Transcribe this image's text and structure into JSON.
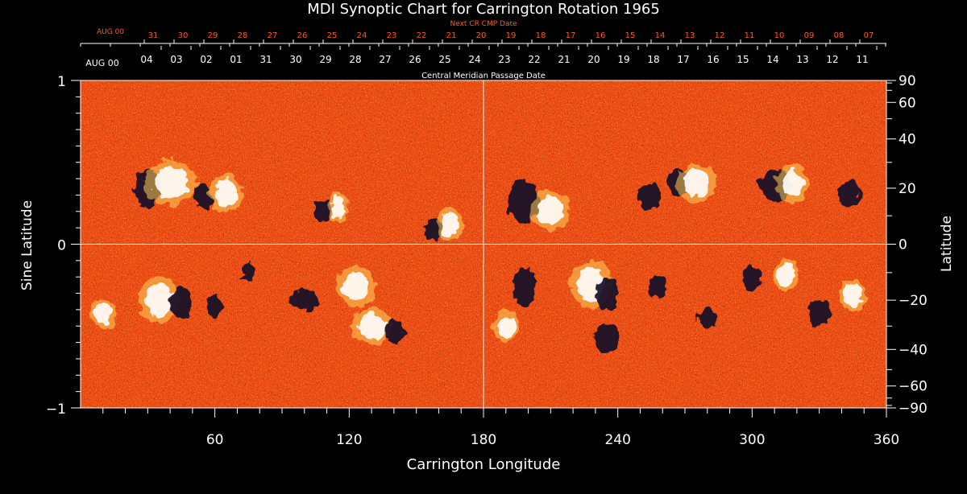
{
  "chart_data": {
    "type": "heatmap",
    "title": "MDI Synoptic Chart for Carrington Rotation 1965",
    "xlabel": "Carrington Longitude",
    "ylabel_left": "Sine Latitude",
    "ylabel_right": "Latitude",
    "xlim": [
      0,
      360
    ],
    "ylim": [
      -1,
      1
    ],
    "x_ticks": [
      60,
      120,
      180,
      240,
      300,
      360
    ],
    "y_ticks_left": [
      1,
      0,
      -1
    ],
    "y_ticks_left_labels": [
      "1",
      "0",
      "−1"
    ],
    "y_ticks_right": [
      90,
      60,
      40,
      20,
      0,
      -20,
      -40,
      -60,
      -90
    ],
    "y_ticks_right_labels": [
      "90",
      "60",
      "40",
      "20",
      "0",
      "−20",
      "−40",
      "−60",
      "−90"
    ],
    "top_axis": {
      "label": "Central Meridian Passage Date",
      "start_label": "AUG 00",
      "dates": [
        "04",
        "03",
        "02",
        "01",
        "31",
        "30",
        "29",
        "28",
        "27",
        "26",
        "25",
        "24",
        "23",
        "22",
        "21",
        "20",
        "19",
        "18",
        "17",
        "16",
        "15",
        "14",
        "13",
        "12",
        "11"
      ]
    },
    "next_axis": {
      "label": "Next CR CMP Date",
      "start_label": "AUG 00",
      "dates": [
        "31",
        "30",
        "29",
        "28",
        "27",
        "26",
        "25",
        "24",
        "23",
        "22",
        "21",
        "20",
        "19",
        "18",
        "17",
        "16",
        "15",
        "14",
        "13",
        "12",
        "11",
        "10",
        "09",
        "08",
        "07"
      ]
    },
    "colors": {
      "background": "#000000",
      "field_base": "#ec4a12",
      "positive_polarity": "#ffffff",
      "positive_mid": "#ffd25a",
      "negative_polarity": "#100828",
      "axis": "#ffffff",
      "next_axis": "#ff5a1e"
    }
  }
}
